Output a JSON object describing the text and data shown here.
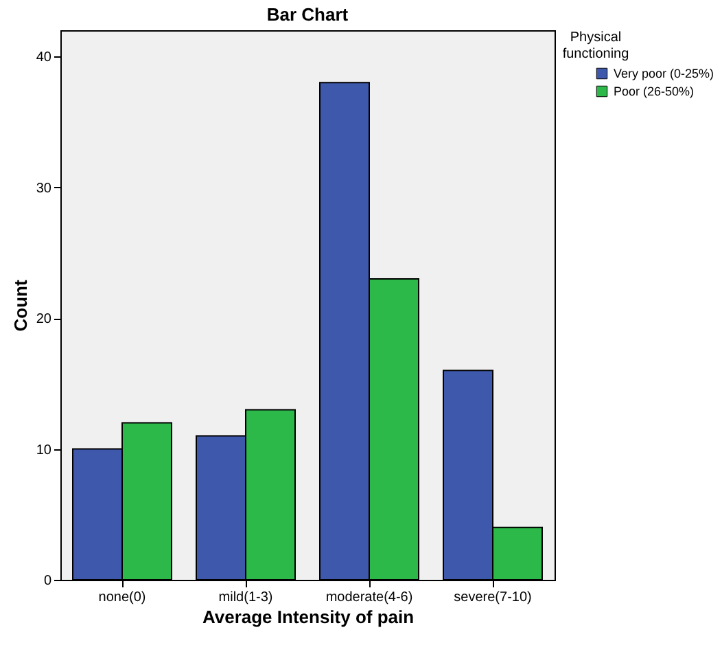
{
  "chart_data": {
    "type": "bar",
    "title": "Bar Chart",
    "xlabel": "Average Intensity of pain",
    "ylabel": "Count",
    "legend_title": "Physical functioning",
    "categories": [
      "none(0)",
      "mild(1-3)",
      "moderate(4-6)",
      "severe(7-10)"
    ],
    "series": [
      {
        "name": "Very poor (0-25%)",
        "color": "#3e58ac",
        "values": [
          10,
          11,
          38,
          16
        ]
      },
      {
        "name": "Poor (26-50%)",
        "color": "#2db84a",
        "values": [
          12,
          13,
          23,
          4
        ]
      }
    ],
    "ylim": [
      0,
      42
    ],
    "yticks": [
      0,
      10,
      20,
      30,
      40
    ],
    "grid": false,
    "legend": "right"
  }
}
